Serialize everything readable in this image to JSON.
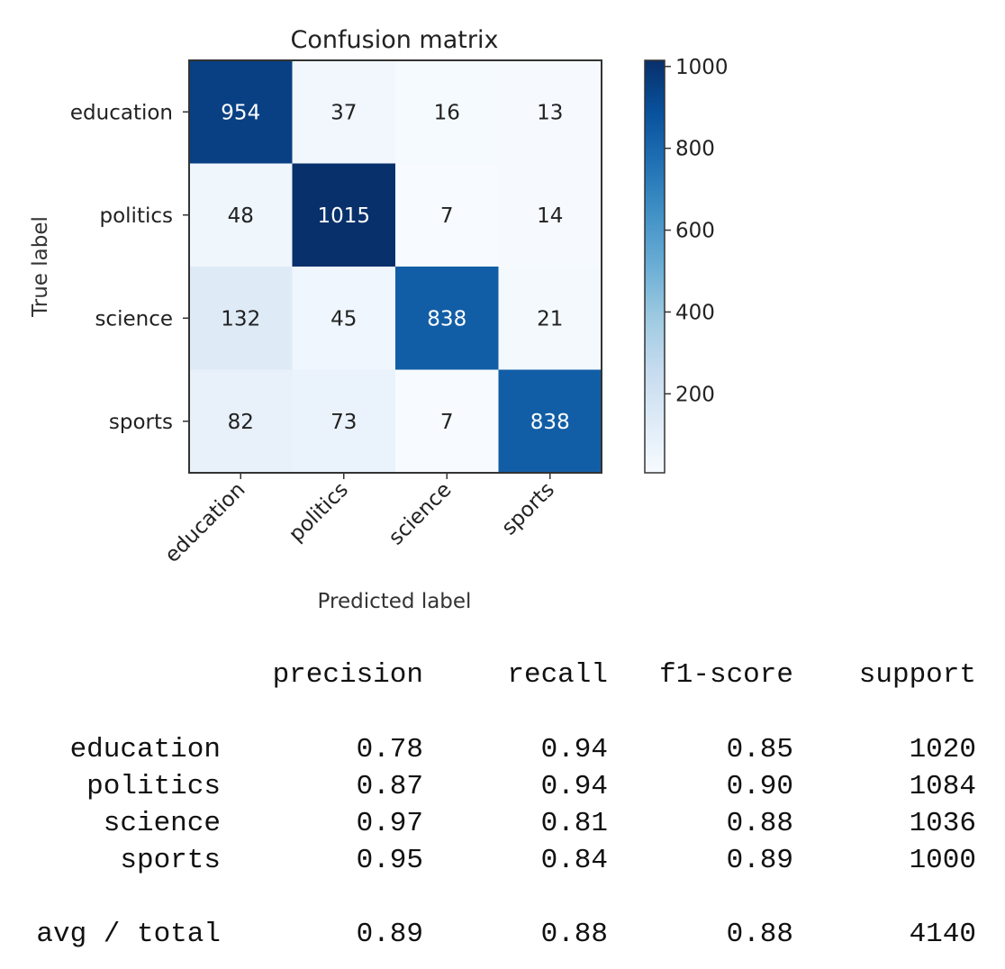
{
  "chart_data": {
    "type": "heatmap",
    "title": "Confusion matrix",
    "xlabel": "Predicted label",
    "ylabel": "True label",
    "row_labels": [
      "education",
      "politics",
      "science",
      "sports"
    ],
    "col_labels": [
      "education",
      "politics",
      "science",
      "sports"
    ],
    "matrix": [
      [
        954,
        37,
        16,
        13
      ],
      [
        48,
        1015,
        7,
        14
      ],
      [
        132,
        45,
        838,
        21
      ],
      [
        82,
        73,
        7,
        838
      ]
    ],
    "colormap": "Blues",
    "colorbar": {
      "min": 7,
      "max": 1015,
      "ticks": [
        200,
        400,
        600,
        800,
        1000
      ]
    }
  },
  "report": {
    "headers": [
      "precision",
      "recall",
      "f1-score",
      "support"
    ],
    "rows": [
      {
        "label": "education",
        "values": [
          "0.78",
          "0.94",
          "0.85",
          "1020"
        ]
      },
      {
        "label": "politics",
        "values": [
          "0.87",
          "0.94",
          "0.90",
          "1084"
        ]
      },
      {
        "label": "science",
        "values": [
          "0.97",
          "0.81",
          "0.88",
          "1036"
        ]
      },
      {
        "label": "sports",
        "values": [
          "0.95",
          "0.84",
          "0.89",
          "1000"
        ]
      }
    ],
    "total": {
      "label": "avg / total",
      "values": [
        "0.89",
        "0.88",
        "0.88",
        "4140"
      ]
    }
  }
}
